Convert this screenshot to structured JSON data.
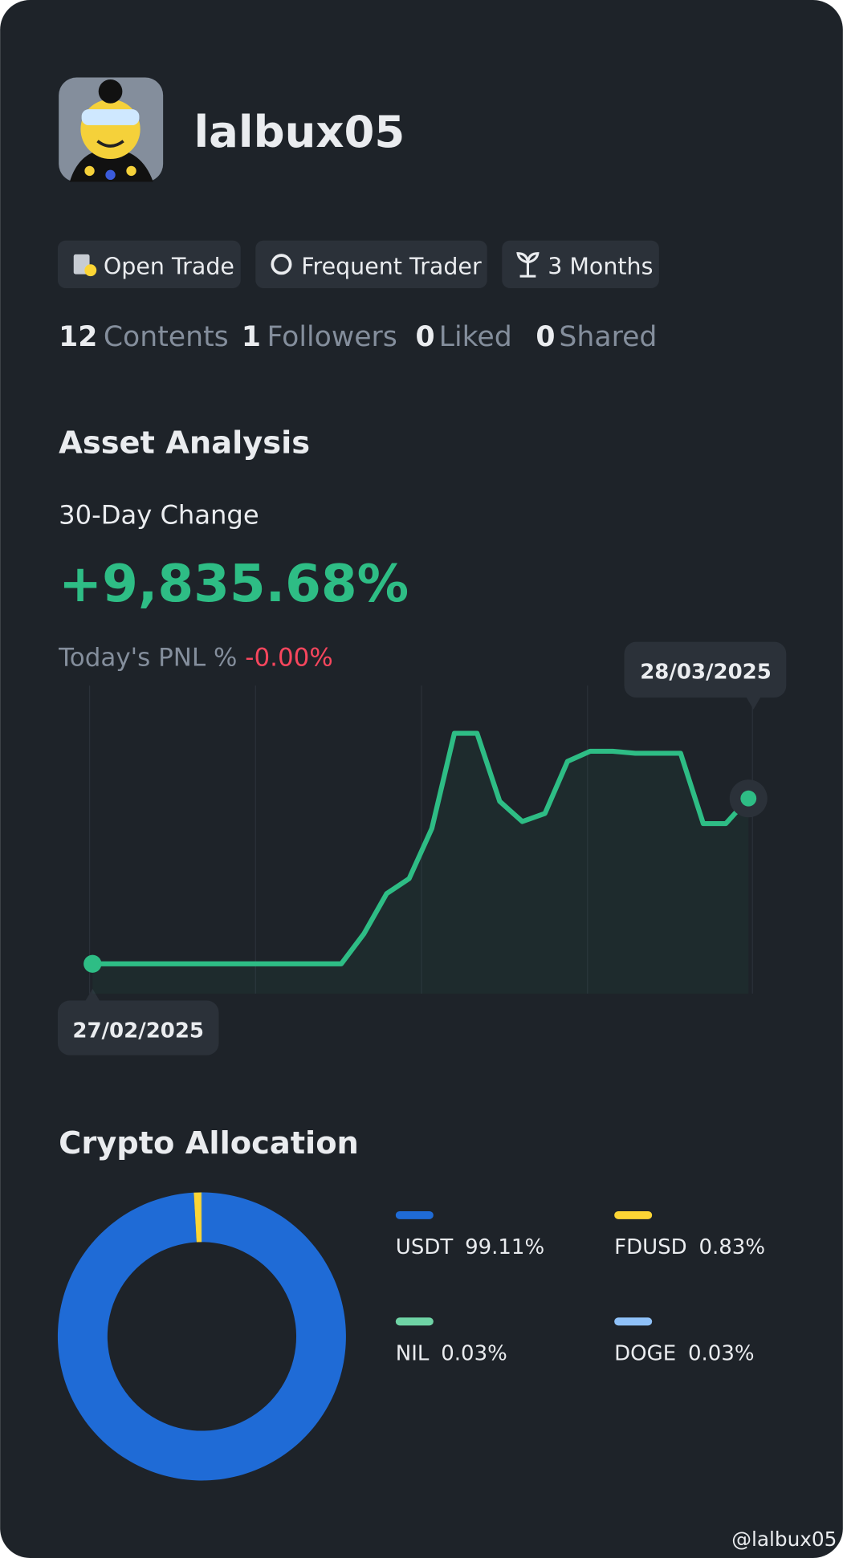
{
  "profile": {
    "username": "lalbux05"
  },
  "badges": [
    "Open Trade",
    "Frequent Trader",
    "3 Months"
  ],
  "stats": [
    {
      "count": 12,
      "label": "Contents"
    },
    {
      "count": 1,
      "label": "Followers"
    },
    {
      "count": 0,
      "label": "Liked"
    },
    {
      "count": 0,
      "label": "Shared"
    }
  ],
  "asset_analysis": {
    "title": "Asset Analysis",
    "change_label": "30-Day Change",
    "change_value": "+9,835.68%",
    "pnl_label": "Today's PNL %",
    "pnl_value": "-0.00%",
    "chart": {
      "type": "line",
      "color": "#2ebd85",
      "start_label": "27/02/2025",
      "end_label": "28/03/2025",
      "values": [
        0,
        0,
        0,
        0,
        0,
        0,
        0,
        0,
        0,
        0,
        0,
        0,
        1790,
        4170,
        5070,
        8050,
        13710,
        13710,
        9660,
        8460,
        8940,
        12040,
        12640,
        12640,
        12520,
        12520,
        12520,
        8340,
        8340,
        9835.68
      ]
    }
  },
  "allocation": {
    "title": "Crypto Allocation",
    "type": "pie",
    "items": [
      {
        "name": "USDT",
        "value": 99.11,
        "value_label": "99.11%",
        "color": "#1f6bd6"
      },
      {
        "name": "FDUSD",
        "value": 0.83,
        "value_label": "0.83%",
        "color": "#fcd535"
      },
      {
        "name": "NIL",
        "value": 0.03,
        "value_label": "0.03%",
        "color": "#6fd3a5"
      },
      {
        "name": "DOGE",
        "value": 0.03,
        "value_label": "0.03%",
        "color": "#8fc1f8"
      }
    ]
  },
  "watermark": "@lalbux05"
}
